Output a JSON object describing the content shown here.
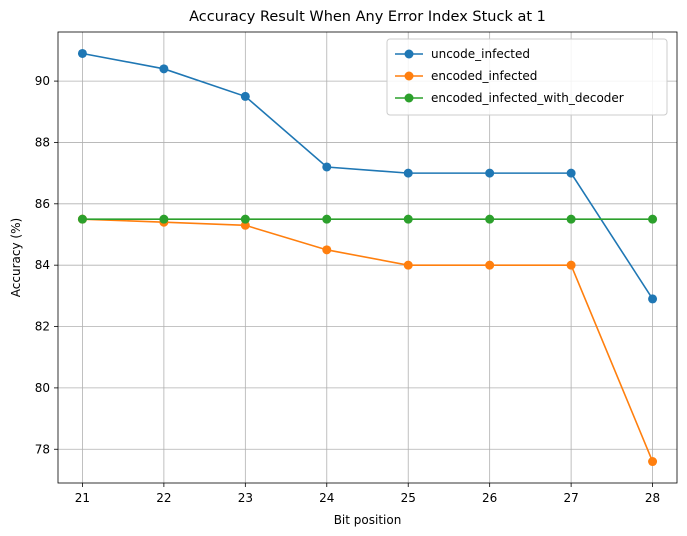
{
  "chart_data": {
    "type": "line",
    "title": "Accuracy Result When Any Error Index Stuck at 1",
    "xlabel": "Bit position",
    "ylabel": "Accuracy (%)",
    "x": [
      21,
      22,
      23,
      24,
      25,
      26,
      27,
      28
    ],
    "xlim": [
      20.7,
      28.3
    ],
    "ylim": [
      76.9,
      91.6
    ],
    "xticks": [
      21,
      22,
      23,
      24,
      25,
      26,
      27,
      28
    ],
    "yticks": [
      78,
      80,
      82,
      84,
      86,
      88,
      90
    ],
    "grid": true,
    "legend_position": "top-right",
    "series": [
      {
        "name": "uncode_infected",
        "color": "#1f77b4",
        "marker": "circle",
        "values": [
          90.9,
          90.4,
          89.5,
          87.2,
          87.0,
          87.0,
          87.0,
          82.9
        ]
      },
      {
        "name": "encoded_infected",
        "color": "#ff7f0e",
        "marker": "circle",
        "values": [
          85.5,
          85.4,
          85.3,
          84.5,
          84.0,
          84.0,
          84.0,
          77.6
        ]
      },
      {
        "name": "encoded_infected_with_decoder",
        "color": "#2ca02c",
        "marker": "circle",
        "values": [
          85.5,
          85.5,
          85.5,
          85.5,
          85.5,
          85.5,
          85.5,
          85.5
        ]
      }
    ]
  }
}
